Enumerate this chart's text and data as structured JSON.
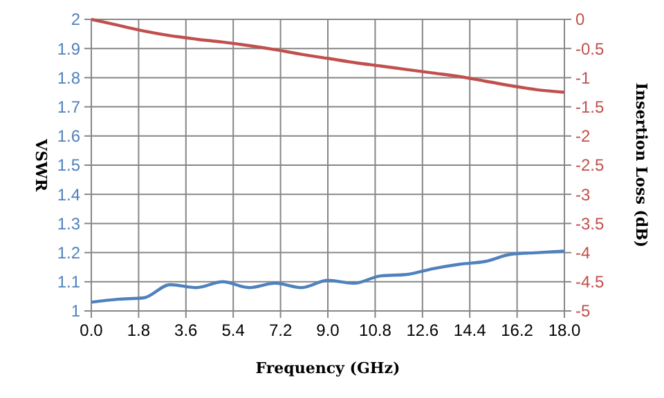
{
  "chart_data": {
    "type": "line",
    "xlabel": "Frequency (GHz)",
    "ylabel": "VSWR",
    "y2label": "Insertion Loss (dB)",
    "x": [
      0,
      1,
      2,
      3,
      4,
      5,
      6,
      7,
      8,
      9,
      10,
      11,
      12,
      13,
      14,
      15,
      16,
      17,
      18
    ],
    "series": [
      {
        "color": "#4f81bd",
        "values": [
          1.03,
          1.04,
          1.045,
          1.09,
          1.08,
          1.1,
          1.08,
          1.095,
          1.08,
          1.105,
          1.095,
          1.12,
          1.125,
          1.145,
          1.16,
          1.17,
          1.195,
          1.2,
          1.205
        ]
      },
      {
        "color": "#c0504d",
        "axis": "y2",
        "values": [
          0,
          -0.1,
          -0.2,
          -0.28,
          -0.34,
          -0.39,
          -0.45,
          -0.52,
          -0.6,
          -0.67,
          -0.74,
          -0.8,
          -0.86,
          -0.92,
          -0.98,
          -1.06,
          -1.14,
          -1.21,
          -1.25
        ]
      }
    ],
    "xlim": [
      0,
      18
    ],
    "xticks": [
      {
        "value": 0,
        "label": "0.0"
      },
      1.8,
      3.6,
      5.4,
      7.2,
      {
        "value": 9,
        "label": "9.0"
      },
      10.8,
      12.6,
      14.4,
      16.2,
      {
        "value": 18,
        "label": "18.0"
      }
    ],
    "ylim": [
      1,
      2
    ],
    "yticks": [
      1,
      1.1,
      1.2,
      1.3,
      1.4,
      1.5,
      1.6,
      1.7,
      1.8,
      1.9,
      2
    ],
    "y2lim": [
      -5,
      0
    ],
    "y2ticks": [
      -5,
      -4.5,
      -4,
      -3.5,
      -3,
      -2.5,
      -2,
      -1.5,
      -1,
      -0.5,
      0
    ],
    "grid": true
  }
}
